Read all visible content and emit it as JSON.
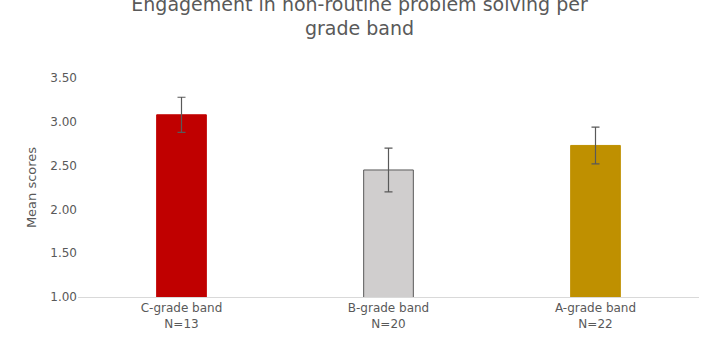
{
  "chart_data": {
    "type": "bar",
    "title": "Engagement in non-routine problem solving per grade band",
    "y_label": "Mean scores",
    "categories": [
      "C-grade band\nN=13",
      "B-grade band\nN=20",
      "A-grade band\nN=22"
    ],
    "values": [
      3.08,
      2.45,
      2.73
    ],
    "errors": [
      0.2,
      0.25,
      0.21
    ],
    "colors": [
      "#c00000",
      "#d0cece",
      "#bf9000"
    ],
    "ylim": [
      1,
      3.5
    ],
    "yticks": [
      {
        "value": 1,
        "label": "1.00"
      },
      {
        "value": 1.5,
        "label": "1.50"
      },
      {
        "value": 2,
        "label": "2.00"
      },
      {
        "value": 2.5,
        "label": "2.50"
      },
      {
        "value": 3,
        "label": "3.00"
      },
      {
        "value": 3.5,
        "label": "3.50"
      }
    ],
    "grid": false
  }
}
